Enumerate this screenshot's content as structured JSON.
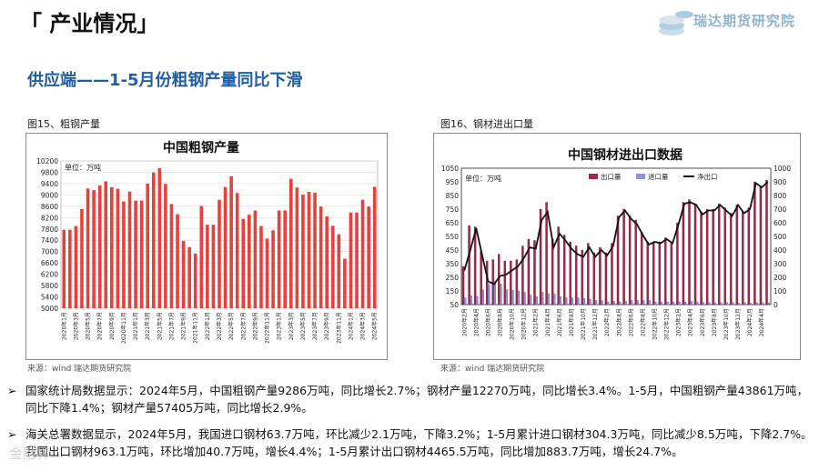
{
  "header": {
    "title": "「 产业情况」"
  },
  "logo": {
    "text": "瑞达期货研究院"
  },
  "section": {
    "title": "供应端——1-5月份粗钢产量同比下滑"
  },
  "watermark": {
    "text": "金融界"
  },
  "bullets": [
    "国家统计局数据显示：2024年5月，中国粗钢产量9286万吨，同比增长2.7%；钢材产量12270万吨，同比增长3.4%。1-5月，中国粗钢产量43861万吨，同比下降1.4%；钢材产量57405万吨，同比增长2.9%。",
    "海关总署数据显示，2024年5月，我国进口钢材63.7万吨，环比减少2.1万吨，下降3.2%；1-5月累计进口钢材304.3万吨，同比减少8.5万吨，下降2.7%。我国出口钢材963.1万吨，环比增加40.7万吨，增长4.4%；1-5月累计出口钢材4465.5万吨，同比增加883.7万吨，增长24.7%。"
  ],
  "bullet_mark": "➢",
  "chart_data": [
    {
      "type": "bar",
      "caption": "图15、粗钢产量",
      "title": "中国粗钢产量",
      "unit_label": "单位：万吨",
      "source": "来源：wind   瑞达期货研究院",
      "ylim": [
        5000,
        10200
      ],
      "yticks": [
        5000,
        5400,
        5800,
        6200,
        6600,
        7000,
        7400,
        7800,
        8200,
        8600,
        9000,
        9400,
        9800,
        10200
      ],
      "grid": true,
      "bar_color": "#e8413c",
      "categories": [
        "2020年1月",
        "2020年2月",
        "2020年3月",
        "2020年4月",
        "2020年5月",
        "2020年6月",
        "2020年7月",
        "2020年8月",
        "2020年9月",
        "2020年10月",
        "2020年11月",
        "2020年12月",
        "2021年1月",
        "2021年2月",
        "2021年3月",
        "2021年4月",
        "2021年5月",
        "2021年6月",
        "2021年7月",
        "2021年8月",
        "2021年9月",
        "2021年10月",
        "2021年11月",
        "2021年12月",
        "2022年1月",
        "2022年2月",
        "2022年3月",
        "2022年4月",
        "2022年5月",
        "2022年6月",
        "2022年7月",
        "2022年8月",
        "2022年9月",
        "2022年10月",
        "2022年11月",
        "2022年12月",
        "2023年1月",
        "2023年2月",
        "2023年3月",
        "2023年4月",
        "2023年5月",
        "2023年6月",
        "2023年7月",
        "2023年8月",
        "2023年9月",
        "2023年10月",
        "2023年11月",
        "2023年12月",
        "2024年1月",
        "2024年2月",
        "2024年3月",
        "2024年4月",
        "2024年5月"
      ],
      "tick_labels": [
        "2020年1月",
        "2020年3月",
        "2020年5月",
        "2020年7月",
        "2020年9月",
        "2020年11月",
        "2021年1月",
        "2021年3月",
        "2021年5月",
        "2021年7月",
        "2021年9月",
        "2021年11月",
        "2022年1月",
        "2022年3月",
        "2022年5月",
        "2022年7月",
        "2022年9月",
        "2022年11月",
        "2023年1月",
        "2023年3月",
        "2023年5月",
        "2023年7月",
        "2023年9月",
        "2023年11月",
        "2024年1月",
        "2024年3月",
        "2024年5月"
      ],
      "values": [
        7770,
        7770,
        7900,
        8500,
        9230,
        9170,
        9340,
        9480,
        9270,
        9220,
        8770,
        9120,
        8800,
        8800,
        9400,
        9790,
        9950,
        9390,
        8680,
        8320,
        7380,
        7160,
        6930,
        8610,
        7950,
        7950,
        8830,
        9280,
        9660,
        9070,
        8150,
        8300,
        8450,
        7900,
        7460,
        7750,
        8450,
        8450,
        9570,
        9260,
        9010,
        9110,
        9080,
        8590,
        8240,
        7910,
        7610,
        6750,
        8380,
        8380,
        8830,
        8590,
        9286
      ]
    },
    {
      "type": "bar+line",
      "caption": "图16、钢材进出口量",
      "title": "中国钢材进出口数据",
      "unit_label": "单位：万吨",
      "source": "来源：wind   瑞达期货研究院",
      "ylim_left": [
        50,
        1050
      ],
      "yticks_left": [
        50,
        150,
        250,
        350,
        450,
        550,
        650,
        750,
        850,
        950,
        1050
      ],
      "ylim_right": [
        0,
        1000
      ],
      "yticks_right": [
        0,
        100,
        200,
        300,
        400,
        500,
        600,
        700,
        800,
        900,
        1000
      ],
      "legend": [
        "出口量",
        "进口量",
        "净出口"
      ],
      "legend_position": "top-right",
      "colors": {
        "export": "#a52447",
        "import": "#8a93dc",
        "net": "#111111"
      },
      "categories": [
        "2020年2月",
        "2020年3月",
        "2020年4月",
        "2020年5月",
        "2020年6月",
        "2020年7月",
        "2020年8月",
        "2020年9月",
        "2020年10月",
        "2020年11月",
        "2020年12月",
        "2021年1月",
        "2021年2月",
        "2021年3月",
        "2021年4月",
        "2021年5月",
        "2021年6月",
        "2021年7月",
        "2021年8月",
        "2021年9月",
        "2021年10月",
        "2021年11月",
        "2021年12月",
        "2022年1月",
        "2022年2月",
        "2022年3月",
        "2022年4月",
        "2022年5月",
        "2022年6月",
        "2022年7月",
        "2022年8月",
        "2022年9月",
        "2022年10月",
        "2022年11月",
        "2022年12月",
        "2023年1月",
        "2023年2月",
        "2023年3月",
        "2023年4月",
        "2023年5月",
        "2023年6月",
        "2023年7月",
        "2023年8月",
        "2023年9月",
        "2023年10月",
        "2023年11月",
        "2023年12月",
        "2024年1月",
        "2024年2月",
        "2024年3月",
        "2024年4月",
        "2024年5月"
      ],
      "tick_labels": [
        "2020年2月",
        "2020年4月",
        "2020年6月",
        "2020年8月",
        "2020年10月",
        "2020年12月",
        "2021年2月",
        "2021年4月",
        "2021年6月",
        "2021年8月",
        "2021年10月",
        "2021年12月",
        "2022年2月",
        "2022年4月",
        "2022年6月",
        "2022年8月",
        "2022年10月",
        "2022年12月",
        "2023年2月",
        "2023年4月",
        "2023年6月",
        "2023年8月",
        "2023年10月",
        "2023年12月",
        "2024年2月",
        "2024年4月"
      ],
      "series": [
        {
          "name": "出口量",
          "values": [
            330,
            630,
            620,
            440,
            370,
            380,
            420,
            370,
            370,
            380,
            480,
            530,
            520,
            750,
            800,
            530,
            620,
            560,
            510,
            480,
            450,
            500,
            430,
            470,
            430,
            500,
            700,
            750,
            700,
            670,
            580,
            510,
            510,
            510,
            540,
            510,
            650,
            800,
            820,
            790,
            730,
            750,
            750,
            790,
            760,
            720,
            780,
            730,
            760,
            950,
            920,
            963.1
          ]
        },
        {
          "name": "进口量",
          "values": [
            100,
            115,
            110,
            160,
            200,
            220,
            200,
            160,
            155,
            150,
            140,
            120,
            110,
            140,
            130,
            130,
            110,
            100,
            100,
            100,
            95,
            90,
            80,
            80,
            70,
            75,
            70,
            75,
            80,
            80,
            80,
            80,
            70,
            70,
            70,
            70,
            70,
            70,
            75,
            70,
            65,
            65,
            65,
            65,
            65,
            65,
            60,
            65,
            60,
            65,
            65,
            63.7
          ]
        },
        {
          "name": "净出口",
          "values": [
            250,
            400,
            560,
            360,
            170,
            150,
            210,
            220,
            250,
            280,
            340,
            420,
            410,
            620,
            680,
            420,
            520,
            470,
            410,
            370,
            350,
            420,
            350,
            400,
            360,
            430,
            640,
            690,
            630,
            590,
            510,
            440,
            460,
            450,
            480,
            450,
            590,
            740,
            750,
            730,
            660,
            690,
            690,
            730,
            690,
            650,
            730,
            670,
            700,
            890,
            860,
            899.4
          ]
        }
      ]
    }
  ]
}
